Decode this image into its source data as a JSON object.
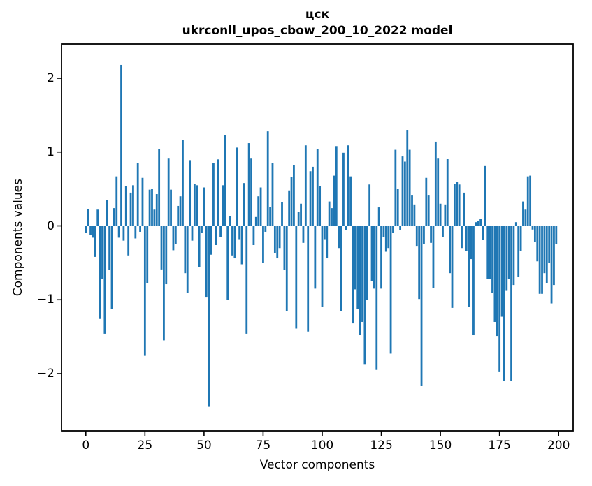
{
  "figure": {
    "background": "#ffffff"
  },
  "chart_data": {
    "type": "bar",
    "title": "цск\nukrconll_upos_cbow_200_10_2022 model",
    "title_line1": "цск",
    "title_line2": "ukrconll_upos_cbow_200_10_2022 model",
    "xlabel": "Vector components",
    "ylabel": "Components values",
    "x_ticks": [
      0,
      25,
      50,
      75,
      100,
      125,
      150,
      175,
      200
    ],
    "y_ticks": [
      2,
      1,
      0,
      -1,
      -2
    ],
    "xlim": [
      -10.6,
      205.9
    ],
    "ylim": [
      -2.77,
      2.46
    ],
    "grid": false,
    "legend": null,
    "bar_color": "#1f77b4",
    "axis_color": "#000000",
    "n_components": 200,
    "values": [
      -0.09,
      0.23,
      -0.12,
      -0.16,
      -0.42,
      0.22,
      -1.26,
      -0.72,
      -1.46,
      0.35,
      -0.6,
      -1.13,
      0.24,
      0.67,
      -0.16,
      2.18,
      -0.2,
      0.54,
      -0.4,
      0.45,
      0.55,
      -0.17,
      0.85,
      -0.08,
      0.65,
      -1.76,
      -0.78,
      0.49,
      0.5,
      0.22,
      0.43,
      1.04,
      -0.59,
      -1.55,
      -0.79,
      0.92,
      0.49,
      -0.33,
      -0.25,
      0.27,
      0.4,
      1.16,
      -0.64,
      -0.91,
      0.89,
      -0.2,
      0.57,
      0.55,
      -0.56,
      -0.09,
      0.52,
      -0.97,
      -2.45,
      -0.39,
      0.85,
      -0.26,
      0.9,
      -0.15,
      0.55,
      1.23,
      -1.0,
      0.13,
      -0.4,
      -0.44,
      1.06,
      -0.18,
      -0.52,
      0.58,
      -1.46,
      1.12,
      0.92,
      -0.26,
      0.12,
      0.4,
      0.52,
      -0.5,
      -0.08,
      1.28,
      0.26,
      0.85,
      -0.37,
      -0.44,
      -0.3,
      0.32,
      -0.6,
      -1.15,
      0.48,
      0.66,
      0.82,
      -1.39,
      0.19,
      0.3,
      -0.23,
      1.09,
      -1.43,
      0.74,
      0.8,
      -0.85,
      1.04,
      0.54,
      -1.1,
      -0.18,
      -0.44,
      0.33,
      0.24,
      0.68,
      1.08,
      -0.3,
      -1.15,
      0.99,
      -0.06,
      1.09,
      0.67,
      -1.32,
      -0.86,
      -1.13,
      -1.48,
      -1.3,
      -1.88,
      -1.0,
      0.56,
      -0.75,
      -0.85,
      -1.95,
      0.25,
      -0.85,
      -0.15,
      -0.35,
      -0.3,
      -1.73,
      -0.09,
      1.03,
      0.5,
      -0.06,
      0.94,
      0.87,
      1.3,
      1.03,
      0.42,
      0.29,
      -0.28,
      -0.99,
      -2.17,
      -0.25,
      0.65,
      0.42,
      -0.23,
      -0.84,
      1.14,
      0.92,
      0.3,
      -0.15,
      0.29,
      0.91,
      -0.64,
      -1.11,
      0.57,
      0.6,
      0.56,
      -0.3,
      0.45,
      -0.34,
      -1.1,
      -0.45,
      -1.48,
      0.05,
      0.07,
      0.09,
      -0.19,
      0.81,
      -0.72,
      -0.72,
      -0.91,
      -1.3,
      -1.49,
      -1.98,
      -1.23,
      -2.1,
      -0.88,
      -0.72,
      -2.1,
      -0.8,
      0.05,
      -0.69,
      -0.34,
      0.33,
      0.22,
      0.67,
      0.68,
      -0.05,
      -0.22,
      -0.48,
      -0.92,
      -0.92,
      -0.64,
      -0.78,
      -0.5,
      -1.05,
      -0.8,
      -0.25
    ]
  }
}
